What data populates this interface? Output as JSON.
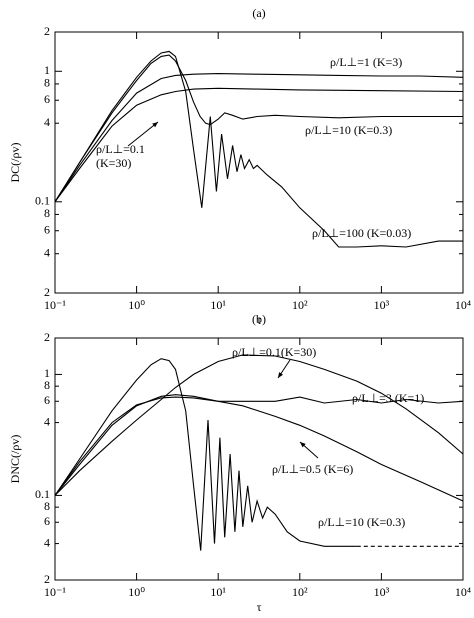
{
  "chart_data": [
    {
      "type": "line",
      "title": "(a)",
      "xlabel": "τ",
      "ylabel": "DC(/ρv)",
      "log_x": true,
      "log_y": true,
      "xlim": [
        0.1,
        10000
      ],
      "ylim": [
        0.02,
        2
      ],
      "xticks": [
        {
          "value": 0.1,
          "label": "10⁻¹"
        },
        {
          "value": 1,
          "label": "10⁰"
        },
        {
          "value": 10,
          "label": "10¹"
        },
        {
          "value": 100,
          "label": "10²"
        },
        {
          "value": 1000,
          "label": "10³"
        },
        {
          "value": 10000,
          "label": "10⁴"
        }
      ],
      "yticks": [
        2,
        1,
        {
          "value": 0.8,
          "label": "8"
        },
        {
          "value": 0.6,
          "label": "6"
        },
        {
          "value": 0.4,
          "label": "4"
        },
        0.1,
        {
          "value": 0.08,
          "label": "8"
        },
        {
          "value": 0.06,
          "label": "6"
        },
        {
          "value": 0.04,
          "label": "4"
        },
        {
          "value": 0.02,
          "label": "2"
        }
      ],
      "series": [
        {
          "name": "ρ/L⊥=1 (K=3)",
          "color": "#000000",
          "x": [
            0.1,
            0.2,
            0.5,
            1,
            2,
            3,
            5,
            10,
            30,
            100,
            300,
            1000,
            3000,
            10000
          ],
          "values": [
            0.1,
            0.19,
            0.42,
            0.68,
            0.88,
            0.93,
            0.95,
            0.96,
            0.95,
            0.94,
            0.93,
            0.92,
            0.92,
            0.9
          ]
        },
        {
          "name": "ρ/L⊥=0.1 (K=30)",
          "color": "#000000",
          "x": [
            0.1,
            0.2,
            0.5,
            1,
            2,
            3,
            5,
            10,
            30,
            100,
            1000,
            10000
          ],
          "values": [
            0.1,
            0.18,
            0.38,
            0.55,
            0.66,
            0.7,
            0.73,
            0.74,
            0.73,
            0.72,
            0.71,
            0.7
          ]
        },
        {
          "name": "ρ/L⊥=10 (K=0.3)",
          "color": "#000000",
          "x": [
            0.1,
            0.2,
            0.5,
            1,
            1.5,
            2,
            2.5,
            3,
            4,
            5,
            6,
            7,
            8,
            10,
            12,
            15,
            20,
            30,
            50,
            100,
            300,
            1000,
            3000,
            10000
          ],
          "values": [
            0.1,
            0.2,
            0.48,
            0.85,
            1.15,
            1.3,
            1.33,
            1.2,
            0.85,
            0.58,
            0.45,
            0.4,
            0.39,
            0.43,
            0.48,
            0.46,
            0.43,
            0.45,
            0.46,
            0.45,
            0.44,
            0.45,
            0.45,
            0.45
          ]
        },
        {
          "name": "ρ/L⊥=100 (K=0.03)",
          "color": "#000000",
          "x": [
            0.1,
            0.2,
            0.5,
            1,
            1.5,
            2,
            2.5,
            3,
            4,
            5,
            6.3,
            8,
            9.5,
            11,
            13,
            15,
            17,
            19,
            21,
            24,
            27,
            30,
            40,
            60,
            100,
            200,
            300,
            500,
            1000,
            2000,
            5000,
            10000
          ],
          "values": [
            0.1,
            0.2,
            0.5,
            0.9,
            1.2,
            1.38,
            1.42,
            1.3,
            0.7,
            0.25,
            0.09,
            0.45,
            0.12,
            0.33,
            0.15,
            0.27,
            0.17,
            0.23,
            0.18,
            0.21,
            0.18,
            0.19,
            0.16,
            0.13,
            0.09,
            0.06,
            0.045,
            0.045,
            0.046,
            0.045,
            0.05,
            0.05
          ]
        }
      ]
    },
    {
      "type": "line",
      "title": "(b)",
      "xlabel": "τ",
      "ylabel": "DNC(/ρv)",
      "log_x": true,
      "log_y": true,
      "xlim": [
        0.1,
        10000
      ],
      "ylim": [
        0.02,
        2
      ],
      "xticks": [
        {
          "value": 0.1,
          "label": "10⁻¹"
        },
        {
          "value": 1,
          "label": "10⁰"
        },
        {
          "value": 10,
          "label": "10¹"
        },
        {
          "value": 100,
          "label": "10²"
        },
        {
          "value": 1000,
          "label": "10³"
        },
        {
          "value": 10000,
          "label": "10⁴"
        }
      ],
      "yticks": [
        2,
        1,
        {
          "value": 0.8,
          "label": "8"
        },
        {
          "value": 0.6,
          "label": "6"
        },
        {
          "value": 0.4,
          "label": "4"
        },
        0.1,
        {
          "value": 0.08,
          "label": "8"
        },
        {
          "value": 0.06,
          "label": "6"
        },
        {
          "value": 0.04,
          "label": "4"
        },
        {
          "value": 0.02,
          "label": "2"
        }
      ],
      "series": [
        {
          "name": "ρ/L⊥=0.1(K=30)",
          "color": "#000000",
          "x": [
            0.1,
            0.2,
            0.5,
            1,
            2,
            3,
            5,
            10,
            20,
            50,
            100,
            200,
            500,
            1000,
            2000,
            5000,
            10000
          ],
          "values": [
            0.1,
            0.16,
            0.28,
            0.42,
            0.62,
            0.78,
            1.0,
            1.28,
            1.45,
            1.42,
            1.28,
            1.1,
            0.88,
            0.7,
            0.52,
            0.33,
            0.22
          ]
        },
        {
          "name": "ρ/L⊥=3 (K=1)",
          "color": "#000000",
          "x": [
            0.1,
            0.2,
            0.5,
            1,
            2,
            3,
            5,
            10,
            20,
            50,
            100,
            200,
            500,
            1000,
            2000,
            5000,
            10000
          ],
          "values": [
            0.1,
            0.18,
            0.38,
            0.55,
            0.66,
            0.68,
            0.66,
            0.6,
            0.6,
            0.6,
            0.65,
            0.58,
            0.62,
            0.58,
            0.62,
            0.58,
            0.6
          ]
        },
        {
          "name": "ρ/L⊥=0.5 (K=6)",
          "color": "#000000",
          "x": [
            0.1,
            0.2,
            0.5,
            1,
            2,
            3,
            5,
            10,
            20,
            50,
            100,
            200,
            500,
            1000,
            3000,
            10000
          ],
          "values": [
            0.1,
            0.19,
            0.4,
            0.56,
            0.64,
            0.65,
            0.64,
            0.6,
            0.55,
            0.45,
            0.38,
            0.31,
            0.23,
            0.18,
            0.13,
            0.09
          ]
        },
        {
          "name": "ρ/L⊥=10 (K=0.3)",
          "color": "#000000",
          "x": [
            0.1,
            0.2,
            0.5,
            1,
            1.5,
            2,
            2.5,
            3,
            4,
            5,
            6.1,
            7.5,
            9,
            10.5,
            12,
            14,
            16,
            18,
            20,
            23,
            26,
            30,
            35,
            40,
            50,
            70,
            100,
            200,
            500
          ],
          "values": [
            0.1,
            0.2,
            0.5,
            0.9,
            1.2,
            1.35,
            1.3,
            1.1,
            0.5,
            0.12,
            0.035,
            0.42,
            0.04,
            0.3,
            0.045,
            0.22,
            0.05,
            0.16,
            0.055,
            0.12,
            0.06,
            0.09,
            0.065,
            0.08,
            0.07,
            0.05,
            0.042,
            0.038,
            0.038
          ]
        },
        {
          "color": "#000000",
          "dash": true,
          "x": [
            500,
            10000
          ],
          "values": [
            0.038,
            0.038
          ]
        }
      ]
    }
  ]
}
